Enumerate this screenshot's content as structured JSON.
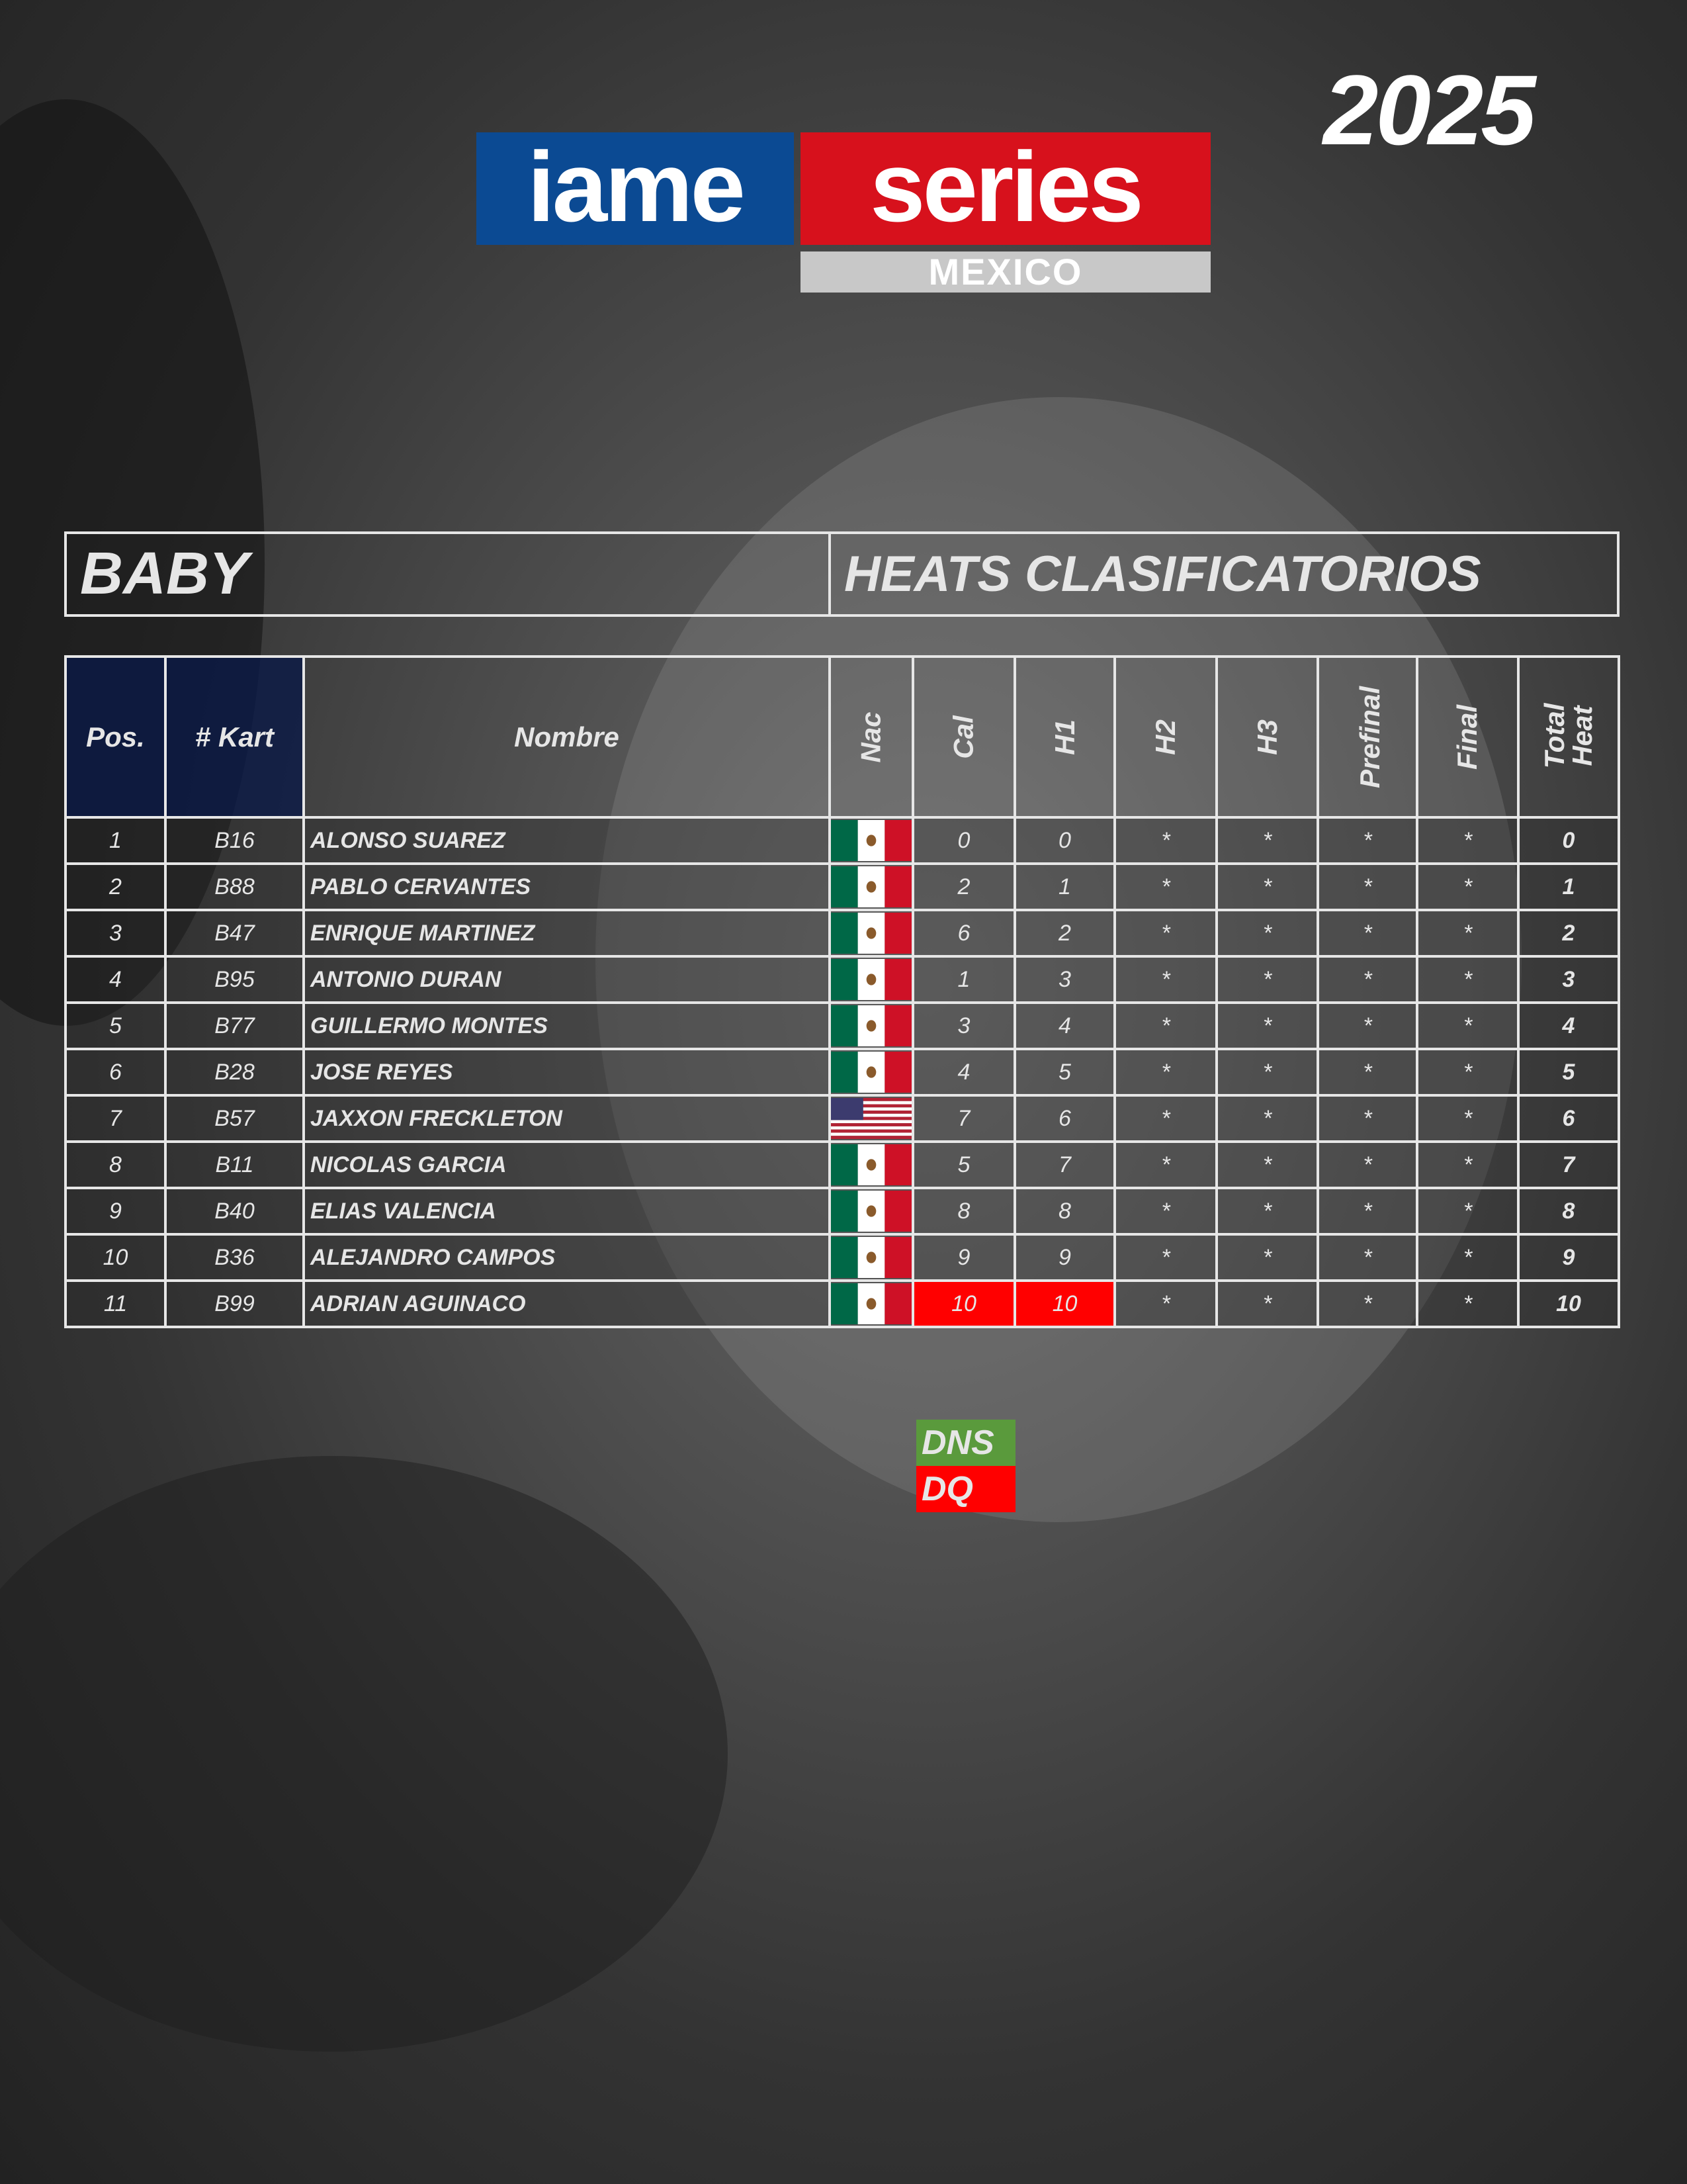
{
  "year": "2025",
  "logo": {
    "left": "iame",
    "right": "series",
    "country": "MEXICO"
  },
  "category": "BABY",
  "session": "HEATS CLASIFICATORIOS",
  "headers": [
    "Pos.",
    "# Kart",
    "Nombre",
    "Nac",
    "Cal",
    "H1",
    "H2",
    "H3",
    "Prefinal",
    "Final",
    "Total Heat"
  ],
  "rows": [
    {
      "pos": "1",
      "kart": "B16",
      "name": "ALONSO SUAREZ",
      "nac": "MEX",
      "cal": "0",
      "h1": "0",
      "h2": "*",
      "h3": "*",
      "pre": "*",
      "fin": "*",
      "total": "0"
    },
    {
      "pos": "2",
      "kart": "B88",
      "name": "PABLO CERVANTES",
      "nac": "MEX",
      "cal": "2",
      "h1": "1",
      "h2": "*",
      "h3": "*",
      "pre": "*",
      "fin": "*",
      "total": "1"
    },
    {
      "pos": "3",
      "kart": "B47",
      "name": "ENRIQUE MARTINEZ",
      "nac": "MEX",
      "cal": "6",
      "h1": "2",
      "h2": "*",
      "h3": "*",
      "pre": "*",
      "fin": "*",
      "total": "2"
    },
    {
      "pos": "4",
      "kart": "B95",
      "name": "ANTONIO DURAN",
      "nac": "MEX",
      "cal": "1",
      "h1": "3",
      "h2": "*",
      "h3": "*",
      "pre": "*",
      "fin": "*",
      "total": "3"
    },
    {
      "pos": "5",
      "kart": "B77",
      "name": "GUILLERMO MONTES",
      "nac": "MEX",
      "cal": "3",
      "h1": "4",
      "h2": "*",
      "h3": "*",
      "pre": "*",
      "fin": "*",
      "total": "4"
    },
    {
      "pos": "6",
      "kart": "B28",
      "name": "JOSE REYES",
      "nac": "MEX",
      "cal": "4",
      "h1": "5",
      "h2": "*",
      "h3": "*",
      "pre": "*",
      "fin": "*",
      "total": "5"
    },
    {
      "pos": "7",
      "kart": "B57",
      "name": "JAXXON FRECKLETON",
      "nac": "USA",
      "cal": "7",
      "h1": "6",
      "h2": "*",
      "h3": "*",
      "pre": "*",
      "fin": "*",
      "total": "6"
    },
    {
      "pos": "8",
      "kart": "B11",
      "name": "NICOLAS GARCIA",
      "nac": "MEX",
      "cal": "5",
      "h1": "7",
      "h2": "*",
      "h3": "*",
      "pre": "*",
      "fin": "*",
      "total": "7"
    },
    {
      "pos": "9",
      "kart": "B40",
      "name": "ELIAS VALENCIA",
      "nac": "MEX",
      "cal": "8",
      "h1": "8",
      "h2": "*",
      "h3": "*",
      "pre": "*",
      "fin": "*",
      "total": "8"
    },
    {
      "pos": "10",
      "kart": "B36",
      "name": "ALEJANDRO CAMPOS",
      "nac": "MEX",
      "cal": "9",
      "h1": "9",
      "h2": "*",
      "h3": "*",
      "pre": "*",
      "fin": "*",
      "total": "9"
    },
    {
      "pos": "11",
      "kart": "B99",
      "name": "ADRIAN AGUINACO",
      "nac": "MEX",
      "cal": "10",
      "h1": "10",
      "h2": "*",
      "h3": "*",
      "pre": "*",
      "fin": "*",
      "total": "10",
      "dq": [
        "cal",
        "h1"
      ]
    }
  ],
  "legend": {
    "dns": "DNS",
    "dq": "DQ",
    "dns_color": "#5a9a3c",
    "dq_color": "#ff0000"
  }
}
